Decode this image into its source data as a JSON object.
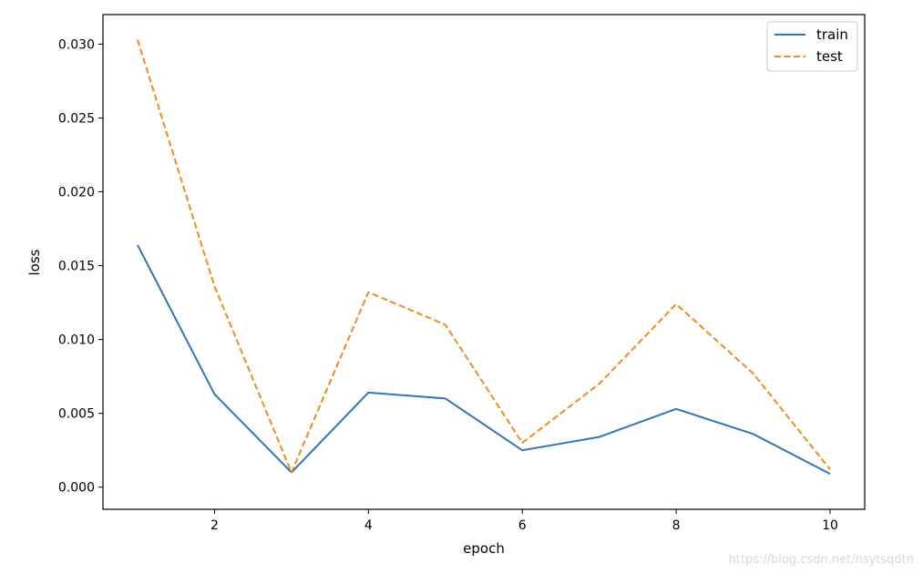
{
  "chart_data": {
    "type": "line",
    "xlabel": "epoch",
    "ylabel": "loss",
    "x": [
      1,
      2,
      3,
      4,
      5,
      6,
      7,
      8,
      9,
      10
    ],
    "xlim": [
      0.55,
      10.45
    ],
    "ylim": [
      -0.0015,
      0.032
    ],
    "x_ticks": [
      2,
      4,
      6,
      8,
      10
    ],
    "x_tick_labels": [
      "2",
      "4",
      "6",
      "8",
      "10"
    ],
    "y_ticks": [
      0.0,
      0.005,
      0.01,
      0.015,
      0.02,
      0.025,
      0.03
    ],
    "y_tick_labels": [
      "0.000",
      "0.005",
      "0.010",
      "0.015",
      "0.020",
      "0.025",
      "0.030"
    ],
    "grid": false,
    "legend_position": "top-right",
    "series": [
      {
        "name": "train",
        "color": "#3274b5",
        "dash": "solid",
        "values": [
          0.0164,
          0.0063,
          0.001,
          0.0064,
          0.006,
          0.0025,
          0.0034,
          0.0053,
          0.0036,
          0.0009
        ]
      },
      {
        "name": "test",
        "color": "#f28a1c",
        "dash": "dashed",
        "values": [
          0.0303,
          0.0136,
          0.001,
          0.0132,
          0.011,
          0.003,
          0.007,
          0.0124,
          0.0077,
          0.0012
        ]
      }
    ]
  },
  "watermark": "https://blog.csdn.net/nsytsqdtn"
}
